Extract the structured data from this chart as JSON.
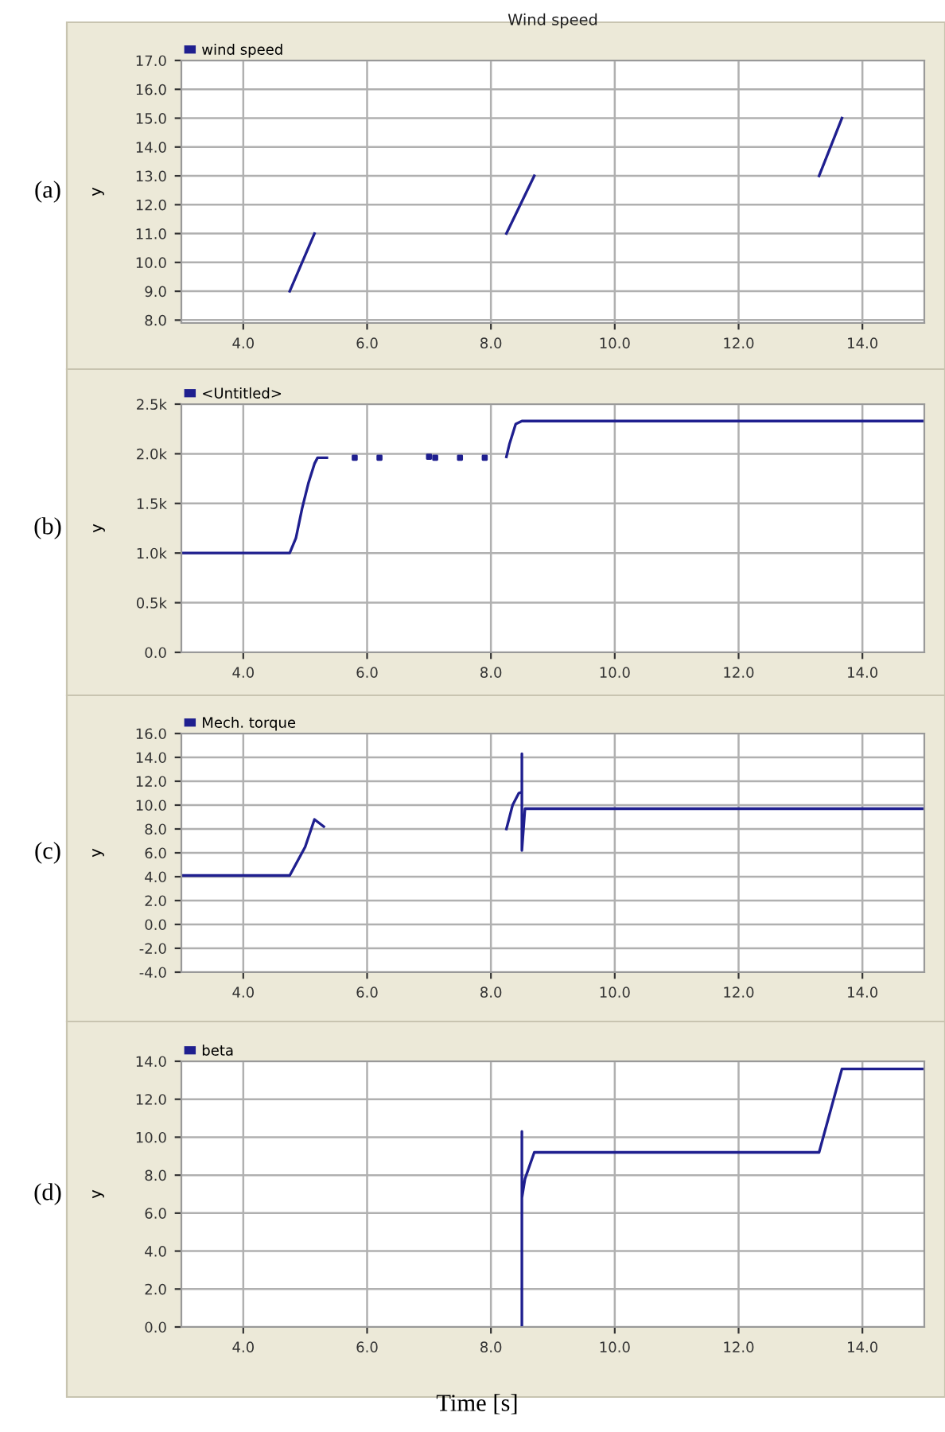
{
  "chart_data": [
    {
      "type": "line",
      "title": "Wind speed",
      "ylabel": "y",
      "legend": "top left",
      "grid": true,
      "annotations": [
        "(a)"
      ],
      "xlim": [
        3.0,
        15.0
      ],
      "ylim": [
        7.9,
        17.0
      ],
      "xticks": [
        {
          "value": 4,
          "label": "4.0"
        },
        {
          "value": 6,
          "label": "6.0"
        },
        {
          "value": 8,
          "label": "8.0"
        },
        {
          "value": 10,
          "label": "10.0"
        },
        {
          "value": 12,
          "label": "12.0"
        },
        {
          "value": 14,
          "label": "14.0"
        }
      ],
      "yticks": [
        {
          "value": 8,
          "label": "8.0"
        },
        {
          "value": 9,
          "label": "9.0"
        },
        {
          "value": 10,
          "label": "10.0"
        },
        {
          "value": 11,
          "label": "11.0"
        },
        {
          "value": 12,
          "label": "12.0"
        },
        {
          "value": 13,
          "label": "13.0"
        },
        {
          "value": 14,
          "label": "14.0"
        },
        {
          "value": 15,
          "label": "15.0"
        },
        {
          "value": 16,
          "label": "16.0"
        },
        {
          "value": 17,
          "label": "17.0"
        }
      ],
      "series": [
        {
          "name": "wind speed",
          "color": "#1f1f8f",
          "x": [
            4.75,
            5.15,
            5.2,
            8.25,
            8.7,
            8.75,
            13.3,
            13.67
          ],
          "values": [
            9.0,
            11.0,
            null,
            11.0,
            13.0,
            null,
            13.0,
            15.0
          ]
        }
      ]
    },
    {
      "type": "line",
      "ylabel": "y",
      "legend": "top left",
      "grid": true,
      "annotations": [
        "(b)"
      ],
      "xlim": [
        3.0,
        15.0
      ],
      "ylim": [
        0,
        2500
      ],
      "xticks": [
        {
          "value": 4,
          "label": "4.0"
        },
        {
          "value": 6,
          "label": "6.0"
        },
        {
          "value": 8,
          "label": "8.0"
        },
        {
          "value": 10,
          "label": "10.0"
        },
        {
          "value": 12,
          "label": "12.0"
        },
        {
          "value": 14,
          "label": "14.0"
        }
      ],
      "yticks": [
        {
          "value": 0,
          "label": "0.0"
        },
        {
          "value": 500,
          "label": "0.5k"
        },
        {
          "value": 1000,
          "label": "1.0k"
        },
        {
          "value": 1500,
          "label": "1.5k"
        },
        {
          "value": 2000,
          "label": "2.0k"
        },
        {
          "value": 2500,
          "label": "2.5k"
        }
      ],
      "series": [
        {
          "name": "<Untitled>",
          "color": "#1f1f8f",
          "x": [
            3.0,
            4.75,
            4.85,
            4.95,
            5.05,
            5.15,
            5.2,
            5.35,
            5.36,
            8.25,
            8.3,
            8.4,
            8.5,
            15.0
          ],
          "values": [
            1000,
            1000,
            1150,
            1450,
            1700,
            1900,
            1960,
            1960,
            null,
            1970,
            2100,
            2300,
            2330,
            2330
          ]
        },
        {
          "type": "scatter",
          "color": "#1f1f8f",
          "x": [
            5.8,
            6.2,
            7.0,
            7.1,
            7.5,
            7.9
          ],
          "values": [
            1960,
            1960,
            1970,
            1960,
            1960,
            1960
          ]
        }
      ]
    },
    {
      "type": "line",
      "ylabel": "y",
      "legend": "top left",
      "grid": true,
      "annotations": [
        "(c)"
      ],
      "xlim": [
        3.0,
        15.0
      ],
      "ylim": [
        -4.0,
        16.0
      ],
      "xticks": [
        {
          "value": 4,
          "label": "4.0"
        },
        {
          "value": 6,
          "label": "6.0"
        },
        {
          "value": 8,
          "label": "8.0"
        },
        {
          "value": 10,
          "label": "10.0"
        },
        {
          "value": 12,
          "label": "12.0"
        },
        {
          "value": 14,
          "label": "14.0"
        }
      ],
      "yticks": [
        {
          "value": -4,
          "label": "-4.0"
        },
        {
          "value": -2,
          "label": "-2.0"
        },
        {
          "value": 0,
          "label": "0.0"
        },
        {
          "value": 2,
          "label": "2.0"
        },
        {
          "value": 4,
          "label": "4.0"
        },
        {
          "value": 6,
          "label": "6.0"
        },
        {
          "value": 8,
          "label": "8.0"
        },
        {
          "value": 10,
          "label": "10.0"
        },
        {
          "value": 12,
          "label": "12.0"
        },
        {
          "value": 14,
          "label": "14.0"
        },
        {
          "value": 16,
          "label": "16.0"
        }
      ],
      "series": [
        {
          "name": "Mech. torque",
          "color": "#1f1f8f",
          "x": [
            3.0,
            4.75,
            5.0,
            5.15,
            5.3,
            5.31,
            8.25,
            8.35,
            8.45,
            8.5,
            8.5,
            8.5,
            8.55,
            15.0
          ],
          "values": [
            4.1,
            4.1,
            6.5,
            8.8,
            8.2,
            null,
            8.0,
            10.0,
            11.0,
            11.1,
            14.3,
            6.2,
            9.7,
            9.7
          ]
        }
      ]
    },
    {
      "type": "line",
      "ylabel": "y",
      "xlabel": "Time [s]",
      "legend": "top left",
      "grid": true,
      "annotations": [
        "(d)"
      ],
      "xlim": [
        3.0,
        15.0
      ],
      "ylim": [
        0.0,
        14.0
      ],
      "xticks": [
        {
          "value": 4,
          "label": "4.0"
        },
        {
          "value": 6,
          "label": "6.0"
        },
        {
          "value": 8,
          "label": "8.0"
        },
        {
          "value": 10,
          "label": "10.0"
        },
        {
          "value": 12,
          "label": "12.0"
        },
        {
          "value": 14,
          "label": "14.0"
        }
      ],
      "yticks": [
        {
          "value": 0,
          "label": "0.0"
        },
        {
          "value": 2,
          "label": "2.0"
        },
        {
          "value": 4,
          "label": "4.0"
        },
        {
          "value": 6,
          "label": "6.0"
        },
        {
          "value": 8,
          "label": "8.0"
        },
        {
          "value": 10,
          "label": "10.0"
        },
        {
          "value": 12,
          "label": "12.0"
        },
        {
          "value": 14,
          "label": "14.0"
        }
      ],
      "series": [
        {
          "name": "beta",
          "color": "#1f1f8f",
          "x": [
            8.5,
            8.5,
            8.5,
            8.55,
            8.7,
            13.3,
            13.67,
            15.0
          ],
          "values": [
            0.0,
            10.3,
            6.8,
            7.8,
            9.2,
            9.2,
            13.6,
            13.6
          ]
        }
      ]
    }
  ]
}
